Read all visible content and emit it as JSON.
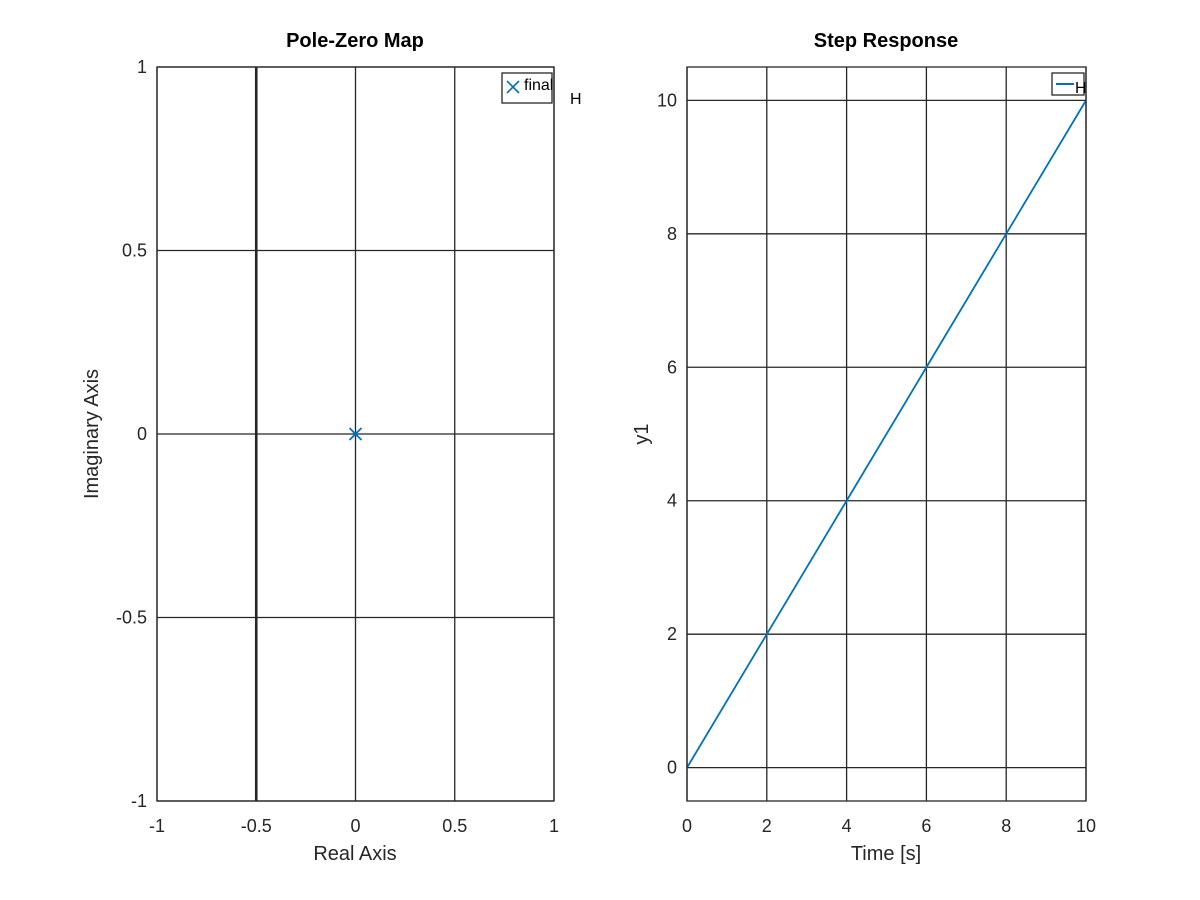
{
  "chart_data": [
    {
      "type": "scatter",
      "title": "Pole-Zero Map",
      "xlabel": "Real Axis",
      "ylabel": "Imaginary Axis",
      "xlim": [
        -1,
        1
      ],
      "ylim": [
        -1,
        1
      ],
      "xticks": [
        "-1",
        "-0.5",
        "0",
        "0.5",
        "1"
      ],
      "yticks": [
        "-1",
        "-0.5",
        "0",
        "0.5",
        "1"
      ],
      "grid": true,
      "legend_position": "top-right",
      "series": [
        {
          "name": "final",
          "marker": "x",
          "color": "#0072bd",
          "points": [
            [
              0,
              0
            ]
          ]
        }
      ],
      "vertical_line": {
        "x": -0.5,
        "color": "#262626"
      },
      "stray_label": "H"
    },
    {
      "type": "line",
      "title": "Step Response",
      "xlabel": "Time [s]",
      "ylabel": "y1",
      "xlim": [
        0,
        10
      ],
      "ylim": [
        -0.5,
        10.5
      ],
      "xticks": [
        "0",
        "2",
        "4",
        "6",
        "8",
        "10"
      ],
      "yticks": [
        "0",
        "2",
        "4",
        "6",
        "8",
        "10"
      ],
      "grid": true,
      "legend_position": "top-right",
      "series": [
        {
          "name": "H",
          "color": "#0072bd",
          "x": [
            0,
            2,
            4,
            6,
            8,
            10
          ],
          "y": [
            0,
            2,
            4,
            6,
            8,
            10
          ]
        }
      ]
    }
  ]
}
